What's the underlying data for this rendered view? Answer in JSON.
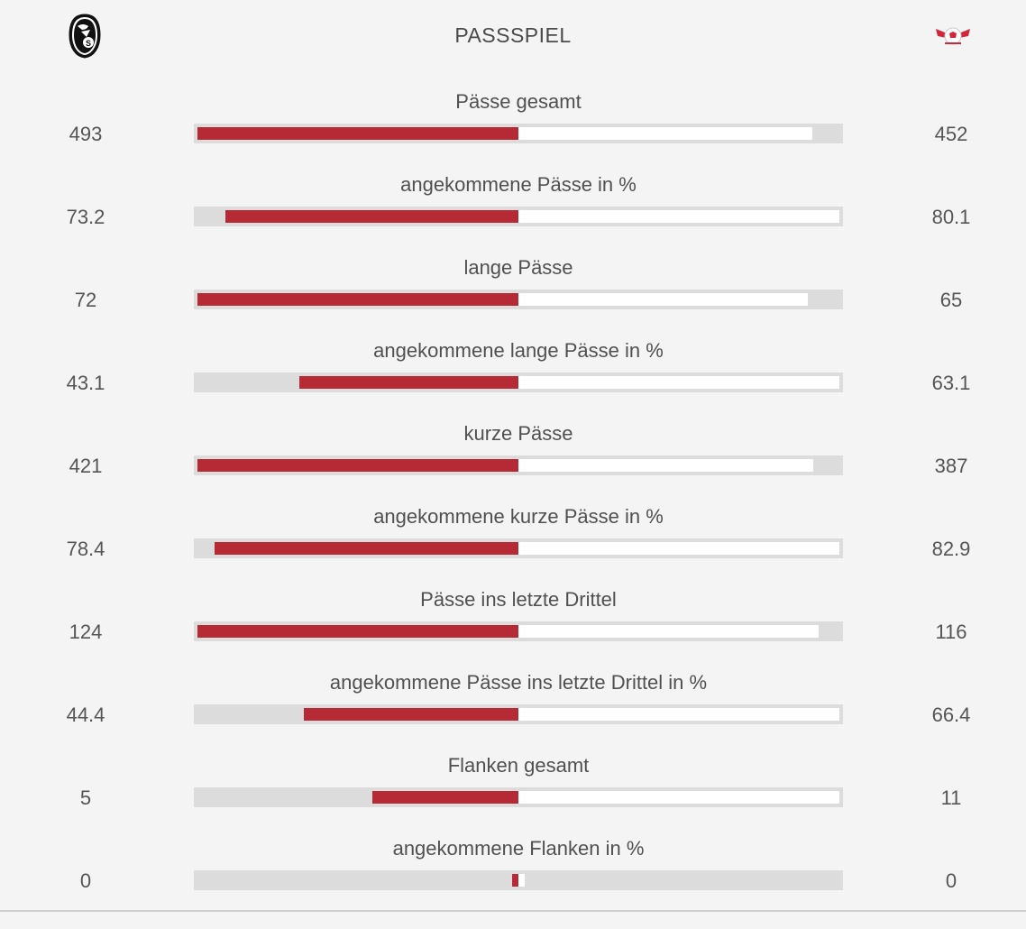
{
  "header": {
    "title": "PASSSPIEL",
    "home_logo": "sc-freiburg-crest-icon",
    "away_logo": "rb-leipzig-logo-icon"
  },
  "colors": {
    "home_bar": "#b62a35",
    "away_bar": "#ffffff",
    "track": "#dcdcdc",
    "background": "#f4f4f4"
  },
  "stats": [
    {
      "label": "Pässe gesamt",
      "home": "493",
      "away": "452"
    },
    {
      "label": "angekommene Pässe in %",
      "home": "73.2",
      "away": "80.1"
    },
    {
      "label": "lange Pässe",
      "home": "72",
      "away": "65"
    },
    {
      "label": "angekommene lange Pässe in %",
      "home": "43.1",
      "away": "63.1"
    },
    {
      "label": "kurze Pässe",
      "home": "421",
      "away": "387"
    },
    {
      "label": "angekommene kurze Pässe in %",
      "home": "78.4",
      "away": "82.9"
    },
    {
      "label": "Pässe ins letzte Drittel",
      "home": "124",
      "away": "116"
    },
    {
      "label": "angekommene Pässe ins letzte Drittel in %",
      "home": "44.4",
      "away": "66.4"
    },
    {
      "label": "Flanken gesamt",
      "home": "5",
      "away": "11"
    },
    {
      "label": "angekommene Flanken in %",
      "home": "0",
      "away": "0"
    }
  ]
}
